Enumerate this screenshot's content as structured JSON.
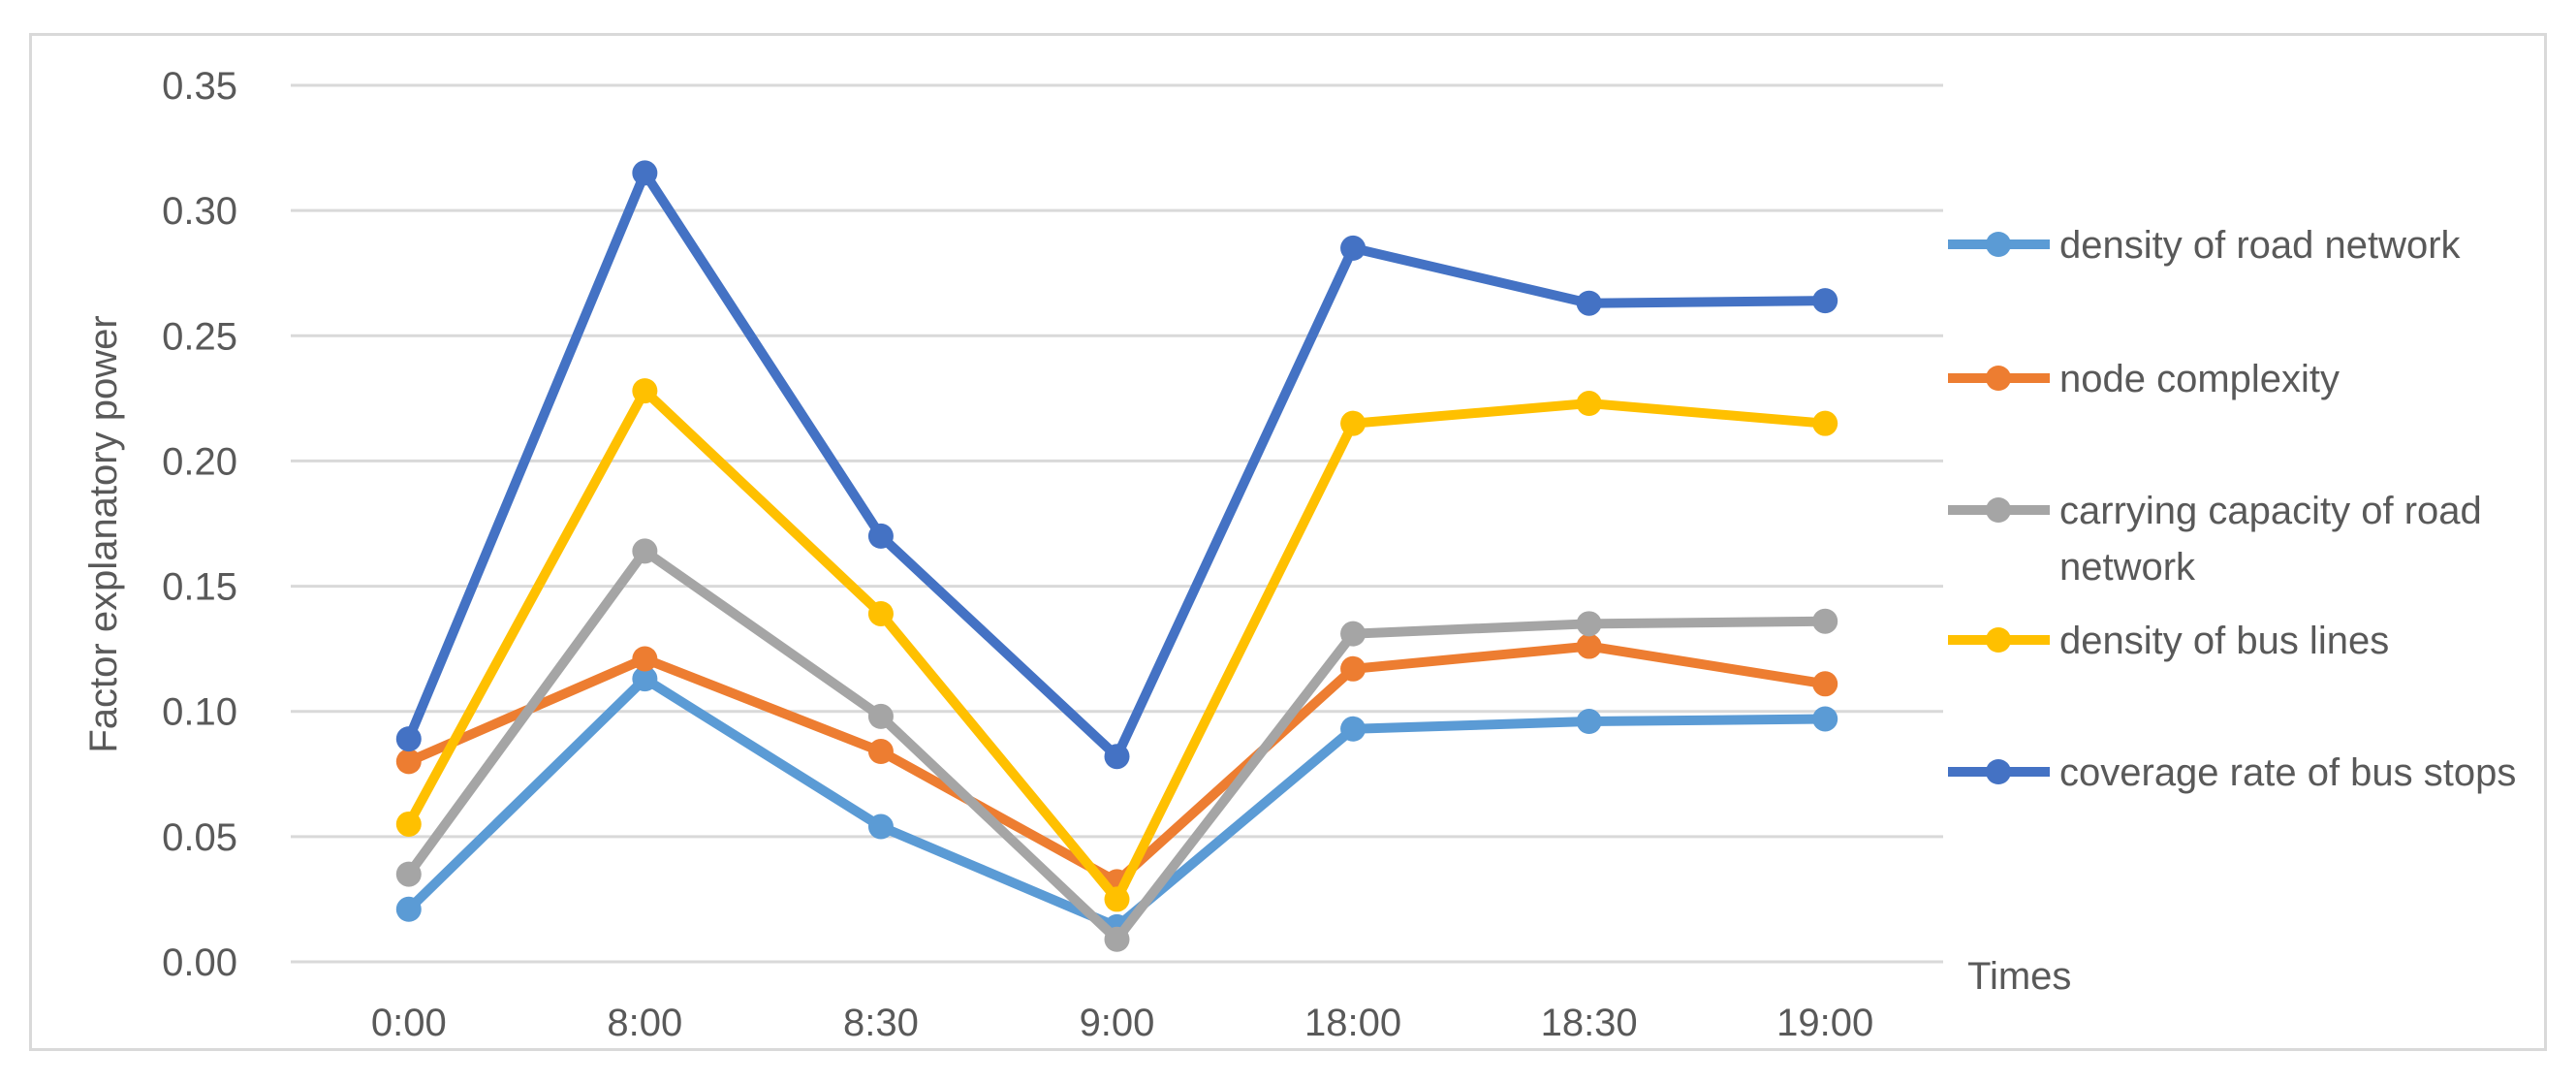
{
  "chart_data": {
    "type": "line",
    "title": "",
    "xlabel": "Times",
    "ylabel": "Factor explanatory power",
    "categories": [
      "0:00",
      "8:00",
      "8:30",
      "9:00",
      "18:00",
      "18:30",
      "19:00"
    ],
    "ylim": [
      0,
      0.35
    ],
    "yticks": [
      "0.00",
      "0.05",
      "0.10",
      "0.15",
      "0.20",
      "0.25",
      "0.30",
      "0.35"
    ],
    "grid": true,
    "legend_position": "right",
    "series": [
      {
        "name": "density of road network",
        "color": "#5b9bd5",
        "values": [
          0.021,
          0.113,
          0.054,
          0.014,
          0.093,
          0.096,
          0.097
        ]
      },
      {
        "name": "node complexity",
        "color": "#ed7d31",
        "values": [
          0.08,
          0.121,
          0.084,
          0.032,
          0.117,
          0.126,
          0.111
        ]
      },
      {
        "name": "carrying capacity of road network",
        "color": "#a5a5a5",
        "values": [
          0.035,
          0.164,
          0.098,
          0.009,
          0.131,
          0.135,
          0.136
        ]
      },
      {
        "name": "density of bus lines",
        "color": "#ffc000",
        "values": [
          0.055,
          0.228,
          0.139,
          0.025,
          0.215,
          0.223,
          0.215
        ]
      },
      {
        "name": "coverage rate of bus stops",
        "color": "#4472c4",
        "values": [
          0.089,
          0.315,
          0.17,
          0.082,
          0.285,
          0.263,
          0.264
        ]
      }
    ]
  }
}
